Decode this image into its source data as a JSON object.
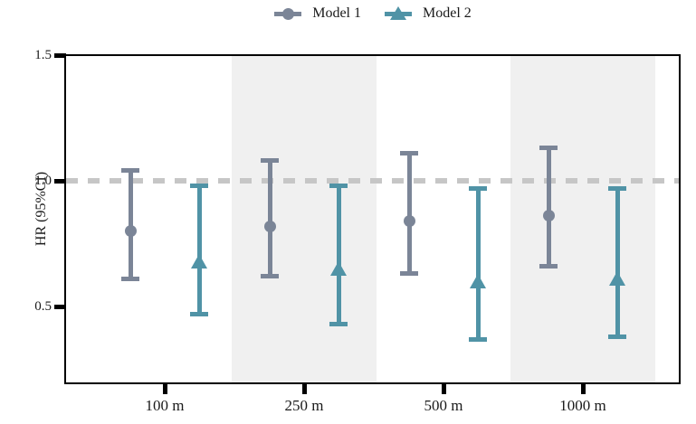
{
  "legend": {
    "items": [
      {
        "label": "Model 1",
        "marker": "circle",
        "color": "#7B8597"
      },
      {
        "label": "Model 2",
        "marker": "triangle",
        "color": "#5093A6"
      }
    ]
  },
  "axes": {
    "y_label": "HR (95%CI)",
    "y_ticks": [
      {
        "label": "1.5",
        "value": 1.5
      },
      {
        "label": "1.0",
        "value": 1.0
      },
      {
        "label": "0.5",
        "value": 0.5
      }
    ],
    "x_ticks": [
      "100 m",
      "250 m",
      "500 m",
      "1000 m"
    ]
  },
  "chart_data": {
    "type": "errorbar",
    "title": "",
    "xlabel": "",
    "ylabel": "HR (95%CI)",
    "categories": [
      "100 m",
      "250 m",
      "500 m",
      "1000 m"
    ],
    "ylim": [
      0.195,
      1.505
    ],
    "y_tick_values": [
      0.5,
      1.0,
      1.5
    ],
    "reference_line": 1.0,
    "reference_line_style": "dashed",
    "shaded_band_categories": [
      "250 m",
      "1000 m"
    ],
    "legend_position": "top-center",
    "grid": false,
    "series": [
      {
        "name": "Model 1",
        "marker": "circle",
        "color": "#7B8597",
        "points": [
          {
            "category": "100 m",
            "hr": 0.8,
            "ci_low": 0.61,
            "ci_high": 1.04
          },
          {
            "category": "250 m",
            "hr": 0.82,
            "ci_low": 0.62,
            "ci_high": 1.08
          },
          {
            "category": "500 m",
            "hr": 0.84,
            "ci_low": 0.63,
            "ci_high": 1.11
          },
          {
            "category": "1000 m",
            "hr": 0.86,
            "ci_low": 0.66,
            "ci_high": 1.13
          }
        ]
      },
      {
        "name": "Model 2",
        "marker": "triangle",
        "color": "#5093A6",
        "points": [
          {
            "category": "100 m",
            "hr": 0.68,
            "ci_low": 0.47,
            "ci_high": 0.98
          },
          {
            "category": "250 m",
            "hr": 0.65,
            "ci_low": 0.43,
            "ci_high": 0.98
          },
          {
            "category": "500 m",
            "hr": 0.6,
            "ci_low": 0.37,
            "ci_high": 0.97
          },
          {
            "category": "1000 m",
            "hr": 0.61,
            "ci_low": 0.38,
            "ci_high": 0.97
          }
        ]
      }
    ]
  },
  "style": {
    "band_color": "#F0F0F0",
    "dash_color": "#C6C6C6",
    "axis_color": "#000000",
    "text_color": "#1a1a1a"
  }
}
